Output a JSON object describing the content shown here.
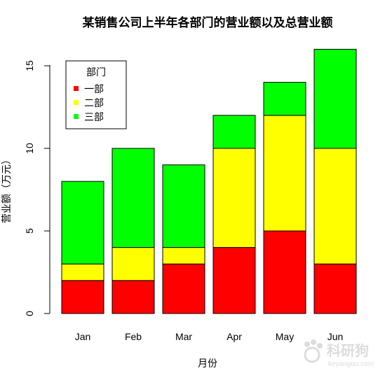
{
  "chart_data": {
    "type": "bar",
    "stacked": true,
    "title": "某销售公司上半年各部门的营业额以及总营业额",
    "xlabel": "月份",
    "ylabel": "营业额（万元）",
    "categories": [
      "Jan",
      "Feb",
      "Mar",
      "Apr",
      "May",
      "Jun"
    ],
    "series": [
      {
        "name": "一部",
        "color": "#ff0000",
        "values": [
          2,
          2,
          3,
          4,
          5,
          3
        ]
      },
      {
        "name": "二部",
        "color": "#ffff00",
        "values": [
          1,
          2,
          1,
          6,
          7,
          7
        ]
      },
      {
        "name": "三部",
        "color": "#00ff00",
        "values": [
          5,
          6,
          5,
          2,
          2,
          6
        ]
      }
    ],
    "ylim": [
      0,
      16
    ],
    "yticks": [
      0,
      5,
      10,
      15
    ],
    "grid": false,
    "legend": {
      "title": "部门",
      "position": "top-left"
    }
  },
  "watermark": {
    "text": "科研狗",
    "url": "keyangou.com",
    "icon": "paw-icon"
  }
}
